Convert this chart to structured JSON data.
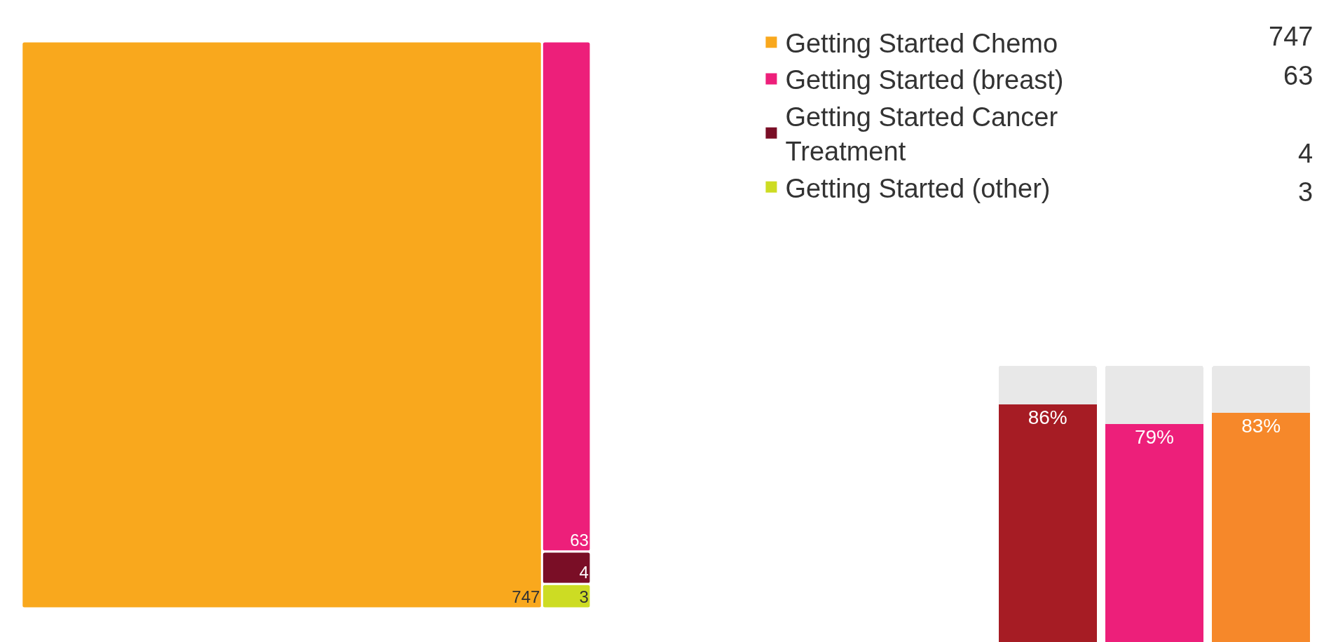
{
  "chart_data": [
    {
      "type": "other",
      "categories": [
        "Getting Started Chemo",
        "Getting Started (breast)",
        "Getting Started Cancer Treatment",
        "Getting Started (other)"
      ],
      "values": [
        747,
        63,
        4,
        3
      ],
      "data_labels": true,
      "annotations": [
        "747",
        "63",
        "4",
        "3"
      ],
      "colors": [
        "#f9a81d",
        "#ed1f7a",
        "#7a0e26",
        "#cddc23"
      ]
    },
    {
      "type": "bar",
      "stacked": true,
      "categories": [
        null,
        null,
        null
      ],
      "ylim": [
        0,
        100
      ],
      "tick_labels": false,
      "series": [
        {
          "colors": [
            "#a61c24",
            "#ed1f7a",
            "#f6882a"
          ],
          "values": [
            86,
            79,
            83
          ],
          "value_labels": [
            "86%",
            "79%",
            "83%"
          ]
        },
        {
          "color": "#e8e8e8",
          "values": [
            14,
            21,
            17
          ]
        }
      ]
    }
  ]
}
